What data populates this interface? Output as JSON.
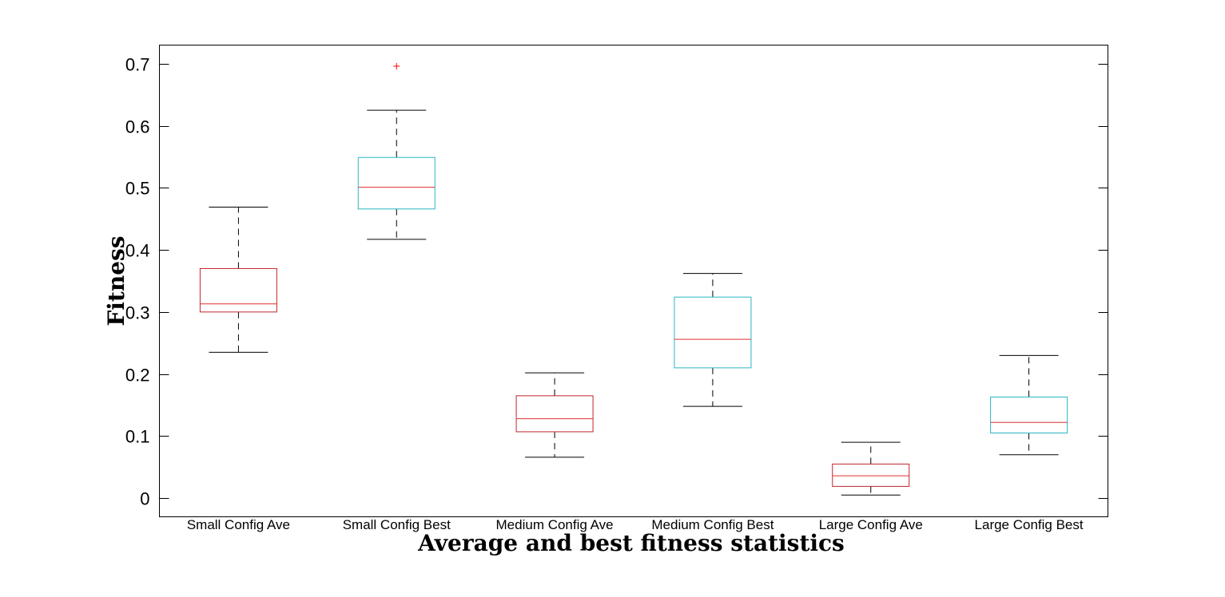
{
  "chart_data": {
    "type": "box",
    "xlabel": "Average and best fitness statistics",
    "ylabel": "Fitness",
    "ylim": [
      -0.03,
      0.73
    ],
    "yticks": [
      0,
      0.1,
      0.2,
      0.3,
      0.4,
      0.5,
      0.6,
      0.7
    ],
    "yticklabels": [
      "0",
      "0.1",
      "0.2",
      "0.3",
      "0.4",
      "0.5",
      "0.6",
      "0.7"
    ],
    "grid": false,
    "colors": {
      "ave": "#c0262b",
      "best": "#29b7c0",
      "median": "#e03030",
      "whisker": "#000000",
      "outlier": "#ff0000"
    },
    "boxes": [
      {
        "label": "Small Config Ave",
        "group": "ave",
        "whisker_low": 0.235,
        "q1": 0.3,
        "median": 0.313,
        "q3": 0.37,
        "whisker_high": 0.469,
        "outliers": []
      },
      {
        "label": "Small Config Best",
        "group": "best",
        "whisker_low": 0.417,
        "q1": 0.466,
        "median": 0.501,
        "q3": 0.549,
        "whisker_high": 0.625,
        "outliers": [
          0.696
        ]
      },
      {
        "label": "Medium Config Ave",
        "group": "ave",
        "whisker_low": 0.066,
        "q1": 0.107,
        "median": 0.128,
        "q3": 0.165,
        "whisker_high": 0.202,
        "outliers": []
      },
      {
        "label": "Medium Config Best",
        "group": "best",
        "whisker_low": 0.148,
        "q1": 0.21,
        "median": 0.256,
        "q3": 0.324,
        "whisker_high": 0.362,
        "outliers": []
      },
      {
        "label": "Large Config Ave",
        "group": "ave",
        "whisker_low": 0.005,
        "q1": 0.019,
        "median": 0.036,
        "q3": 0.055,
        "whisker_high": 0.09,
        "outliers": []
      },
      {
        "label": "Large Config Best",
        "group": "best",
        "whisker_low": 0.07,
        "q1": 0.105,
        "median": 0.122,
        "q3": 0.163,
        "whisker_high": 0.23,
        "outliers": []
      }
    ]
  }
}
